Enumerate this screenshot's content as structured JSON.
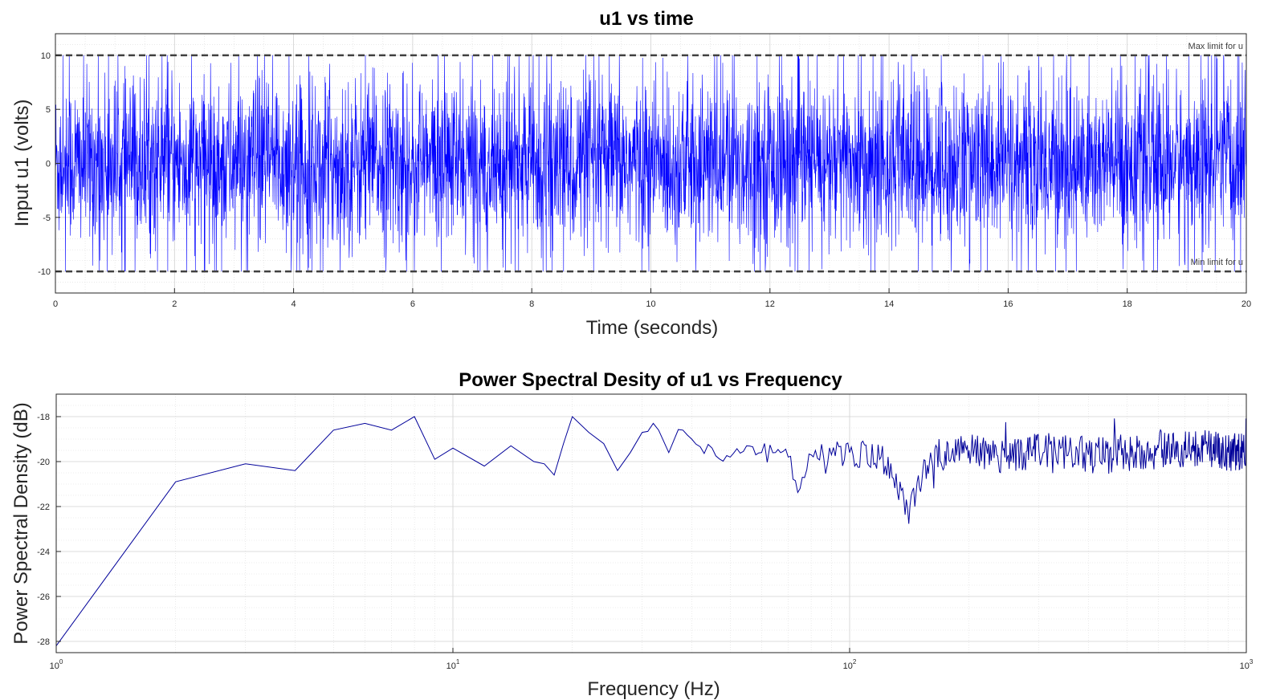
{
  "chart_data": [
    {
      "type": "line",
      "title": "u1 vs time",
      "xlabel": "Time (seconds)",
      "ylabel": "Input u1 (volts)",
      "xlim": [
        0,
        20
      ],
      "ylim": [
        -12,
        12
      ],
      "xticks": [
        0,
        2,
        4,
        6,
        8,
        10,
        12,
        14,
        16,
        18,
        20
      ],
      "yticks": [
        -10,
        -5,
        0,
        5,
        10
      ],
      "grid": true,
      "series": [
        {
          "color": "#0000ff",
          "kind": "saturated random signal",
          "amplitude_core": 5,
          "clip": [
            -10,
            10
          ]
        }
      ],
      "limit_lines": [
        {
          "label": "Max limit for u",
          "value": 10,
          "style": "dashed",
          "color": "#404040"
        },
        {
          "label": "Min limit for u",
          "value": -10,
          "style": "dashed",
          "color": "#404040"
        }
      ]
    },
    {
      "type": "line",
      "title": "Power Spectral Desity of u1 vs Frequency",
      "xlabel": "Frequency (Hz)",
      "ylabel": "Power Spectral Density (dB)",
      "xscale": "log",
      "xlim": [
        1,
        1000
      ],
      "ylim": [
        -28.5,
        -17
      ],
      "xticks": [
        {
          "base": "10",
          "exp": "0",
          "value": 1
        },
        {
          "base": "10",
          "exp": "1",
          "value": 10
        },
        {
          "base": "10",
          "exp": "2",
          "value": 100
        },
        {
          "base": "10",
          "exp": "3",
          "value": 1000
        }
      ],
      "yticks": [
        -28,
        -26,
        -24,
        -22,
        -20,
        -18
      ],
      "grid": true,
      "series": [
        {
          "color": "#000099",
          "x": [
            1,
            2,
            3,
            4,
            5,
            6,
            7,
            8,
            9,
            10,
            12,
            14,
            16,
            17,
            18,
            19,
            20,
            22,
            24,
            26,
            28,
            30,
            32,
            35,
            38,
            40,
            45,
            50,
            55,
            60,
            65,
            70,
            75,
            80,
            90,
            100,
            120,
            140,
            160,
            200,
            250,
            300,
            400,
            500,
            600,
            700,
            800,
            900,
            1000
          ],
          "y": [
            -28.2,
            -20.9,
            -20.1,
            -20.4,
            -18.6,
            -18.3,
            -18.6,
            -18.0,
            -19.9,
            -19.4,
            -20.2,
            -19.3,
            -20.0,
            -20.1,
            -20.6,
            -19.2,
            -18.0,
            -18.7,
            -19.2,
            -20.4,
            -19.6,
            -18.7,
            -18.3,
            -19.6,
            -18.6,
            -19.0,
            -19.4,
            -19.8,
            -19.3,
            -19.6,
            -19.6,
            -19.8,
            -21.2,
            -19.7,
            -19.7,
            -19.6,
            -19.8,
            -22.1,
            -19.6,
            -19.5,
            -19.8,
            -19.5,
            -19.7,
            -19.6,
            -19.4,
            -19.5,
            -19.4,
            -19.6,
            -19.5
          ]
        }
      ]
    }
  ]
}
